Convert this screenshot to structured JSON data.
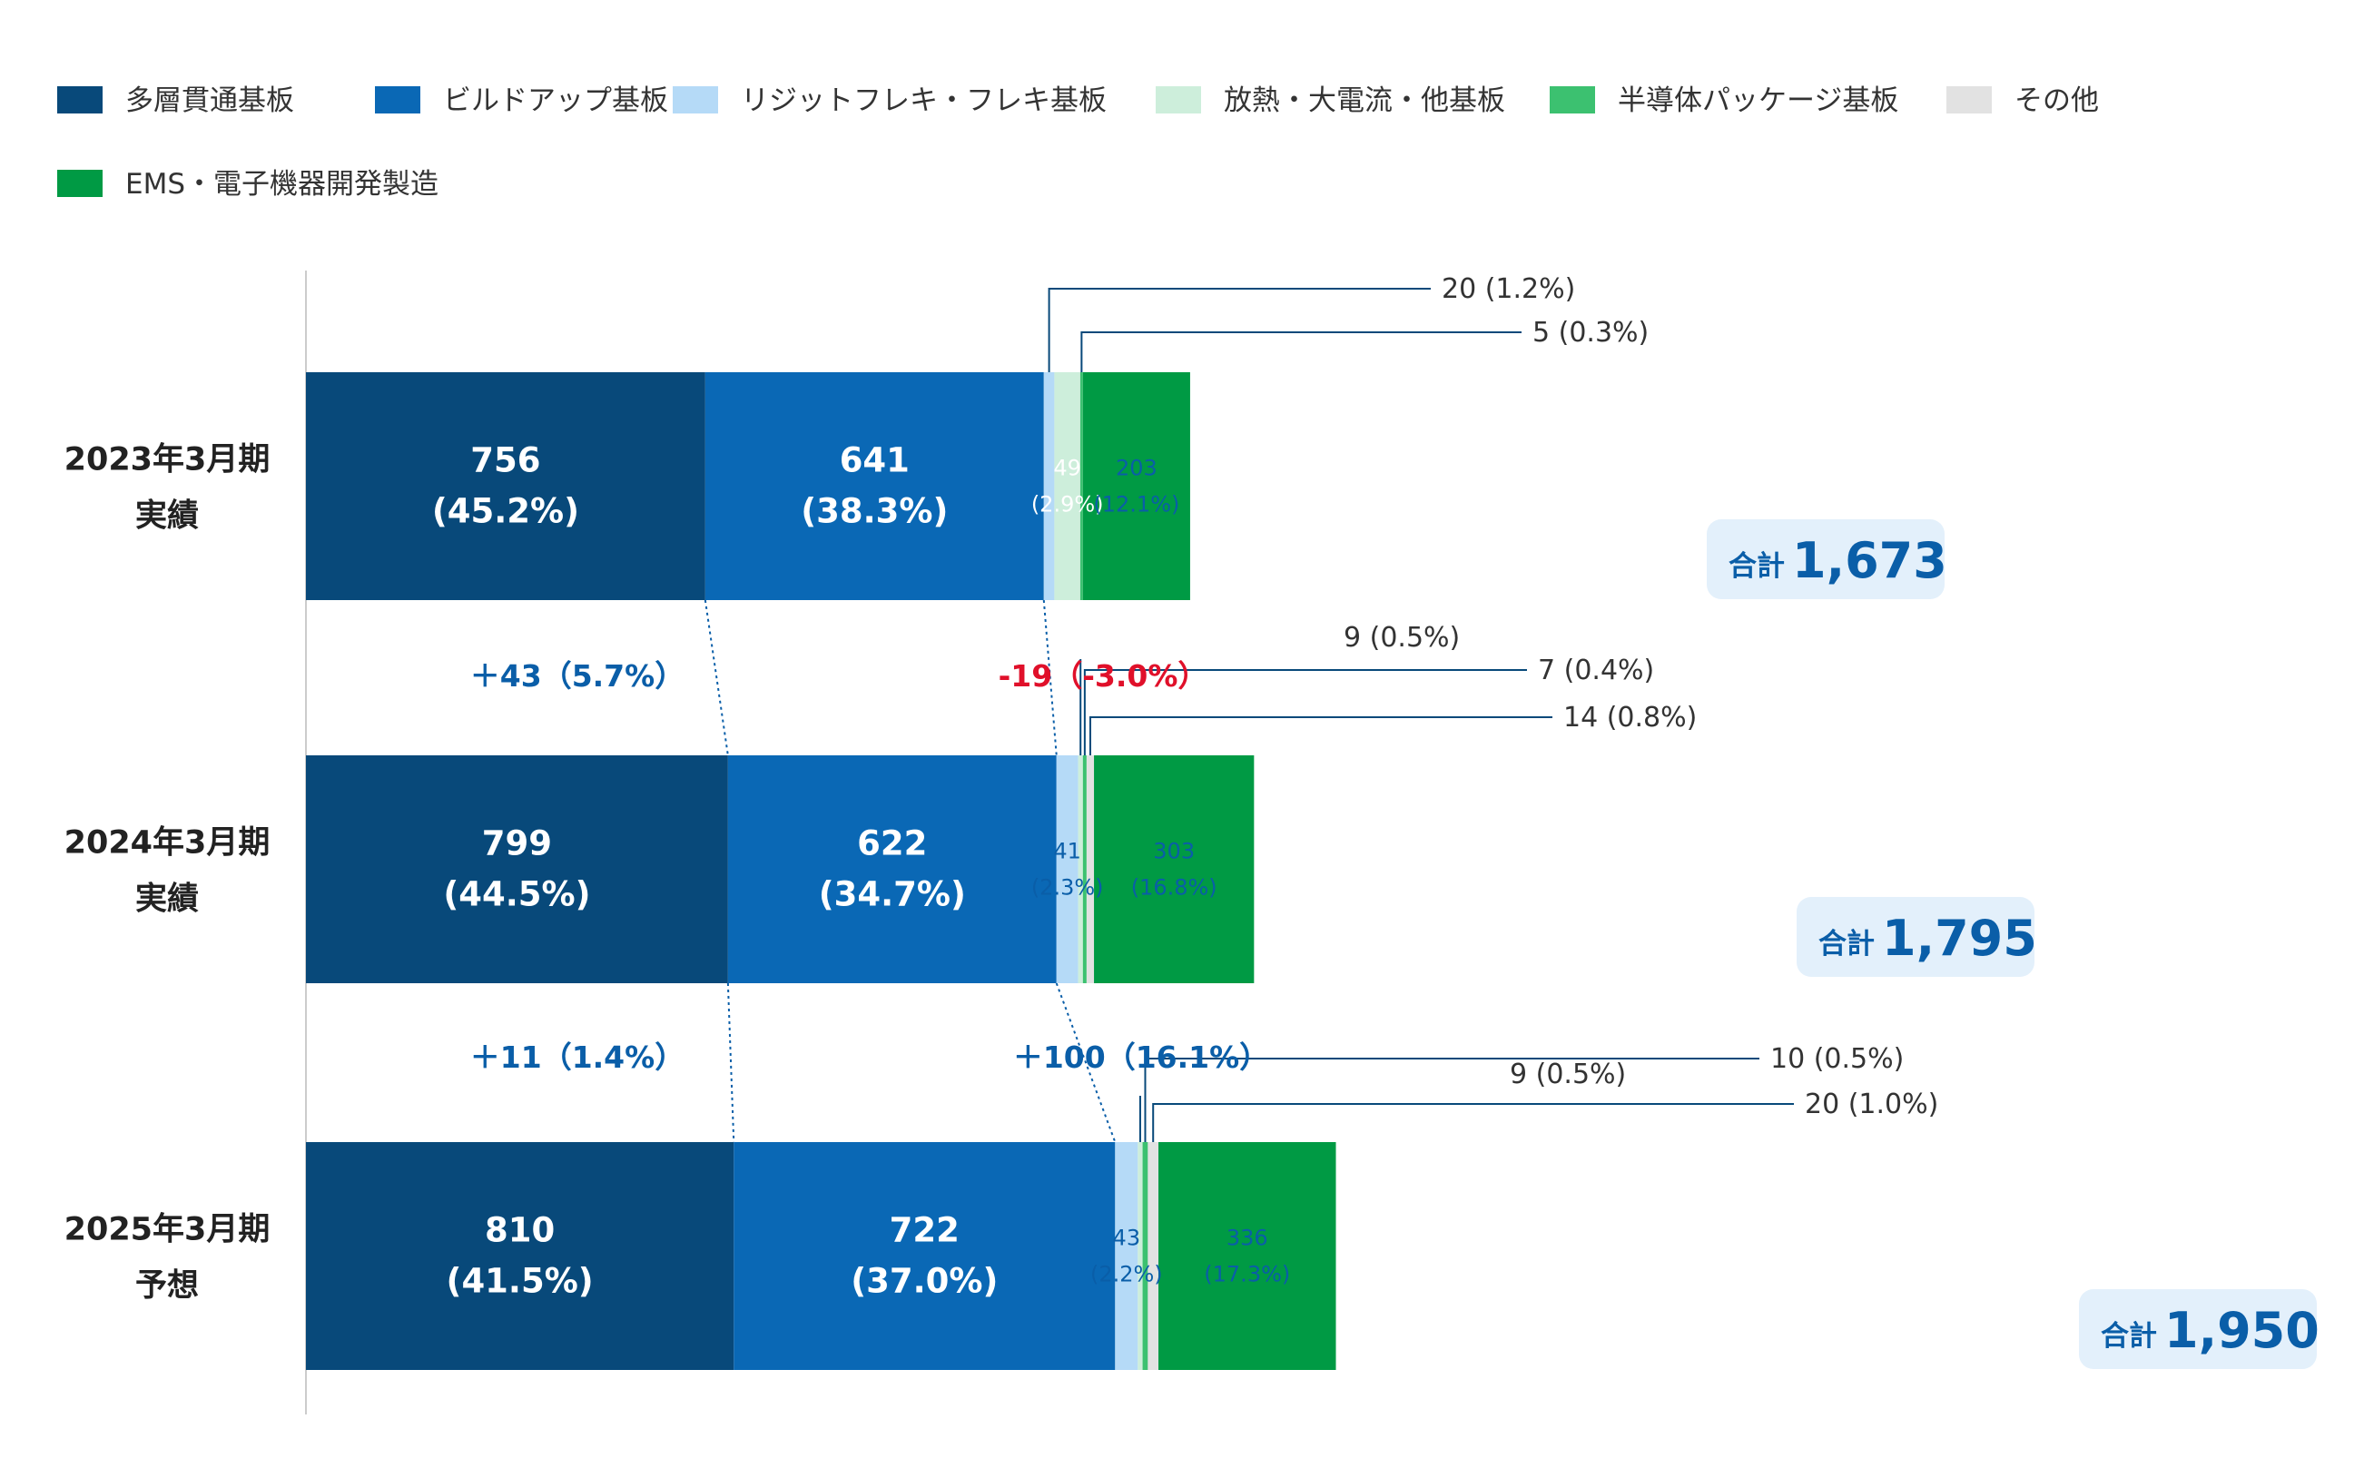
{
  "chart_data": {
    "type": "bar",
    "orientation": "horizontal",
    "stacked": true,
    "categories": [
      [
        "2023年3月期",
        "実績"
      ],
      [
        "2024年3月期",
        "実績"
      ],
      [
        "2025年3月期",
        "予想"
      ]
    ],
    "legend_position": "top-left",
    "series": [
      {
        "name": "多層貫通基板",
        "color": "#08497a",
        "values": [
          756,
          799,
          810
        ],
        "labels": [
          [
            "756",
            "(45.2%)"
          ],
          [
            "799",
            "(44.5%)"
          ],
          [
            "810",
            "(41.5%)"
          ]
        ]
      },
      {
        "name": "ビルドアップ基板",
        "color": "#0a68b5",
        "values": [
          641,
          622,
          722
        ],
        "labels": [
          [
            "641",
            "(38.3%)"
          ],
          [
            "622",
            "(34.7%)"
          ],
          [
            "722",
            "(37.0%)"
          ]
        ]
      },
      {
        "name": "リジットフレキ・フレキ基板",
        "color": "#b5daf7",
        "values": [
          20,
          41,
          43
        ],
        "labels": [
          null,
          [
            "41",
            "(2.3%)"
          ],
          [
            "43",
            "(2.2%)"
          ]
        ]
      },
      {
        "name": "放熱・大電流・他基板",
        "color": "#cdeedb",
        "values": [
          49,
          9,
          9
        ],
        "labels": [
          [
            "49",
            "(2.9%)"
          ],
          null,
          null
        ]
      },
      {
        "name": "半導体パッケージ基板",
        "color": "#3cc170",
        "values": [
          5,
          7,
          10
        ],
        "labels": [
          null,
          null,
          null
        ]
      },
      {
        "name": "その他",
        "color": "#e2e2e2",
        "values": [
          0,
          14,
          20
        ],
        "labels": [
          null,
          null,
          null
        ]
      },
      {
        "name": "EMS・電子機器開発製造",
        "color": "#009a44",
        "values": [
          203,
          303,
          336
        ],
        "labels": [
          [
            "203",
            "(12.1%)"
          ],
          [
            "303",
            "(16.8%)"
          ],
          [
            "336",
            "(17.3%)"
          ]
        ]
      }
    ],
    "callouts": [
      {
        "cat": 0,
        "series": 2,
        "text": "20 (1.2%)"
      },
      {
        "cat": 0,
        "series": 4,
        "text": "5 (0.3%)"
      },
      {
        "cat": 1,
        "series": 3,
        "text": "9 (0.5%)"
      },
      {
        "cat": 1,
        "series": 4,
        "text": "7 (0.4%)"
      },
      {
        "cat": 1,
        "series": 5,
        "text": "14 (0.8%)"
      },
      {
        "cat": 2,
        "series": 3,
        "text": "9 (0.5%)"
      },
      {
        "cat": 2,
        "series": 4,
        "text": "10 (0.5%)"
      },
      {
        "cat": 2,
        "series": 5,
        "text": "20 (1.0%)"
      }
    ],
    "changes": [
      {
        "text": "＋43（5.7%）",
        "color": "#0a5ea8"
      },
      {
        "text": "-19（-3.0%）",
        "color": "#e0102a"
      },
      {
        "text": "＋11（1.4%）",
        "color": "#0a5ea8"
      },
      {
        "text": "＋100（16.1%）",
        "color": "#0a5ea8"
      }
    ],
    "totals": {
      "prefix": "合計",
      "values": [
        "1,673",
        "1,795",
        "1,950"
      ]
    }
  }
}
